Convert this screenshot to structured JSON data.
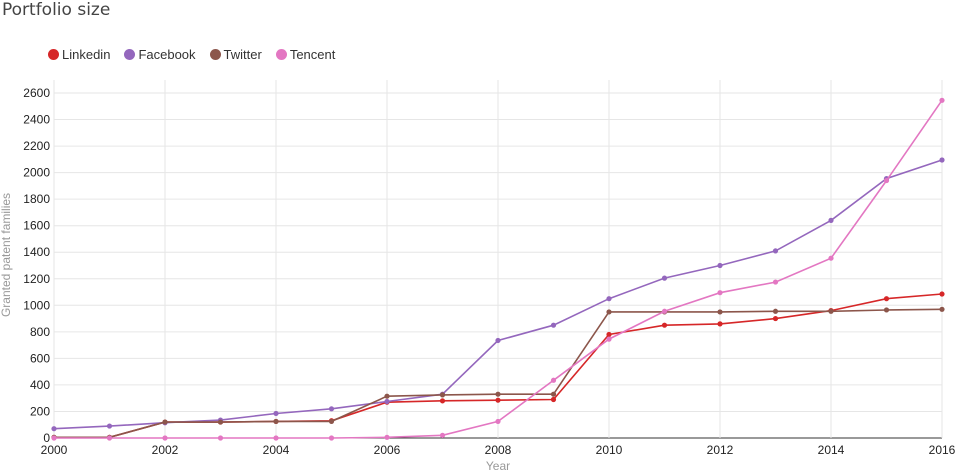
{
  "chart_data": {
    "type": "line",
    "title": "Portfolio size",
    "xlabel": "Year",
    "ylabel": "Granted patent families",
    "xlim": [
      2000,
      2016
    ],
    "ylim": [
      0,
      2700
    ],
    "x_ticks": [
      2000,
      2002,
      2004,
      2006,
      2008,
      2010,
      2012,
      2014,
      2016
    ],
    "y_ticks": [
      0,
      200,
      400,
      600,
      800,
      1000,
      1200,
      1400,
      1600,
      1800,
      2000,
      2200,
      2400,
      2600
    ],
    "grid": true,
    "legend_position": "top-left",
    "x": [
      2000,
      2001,
      2002,
      2003,
      2004,
      2005,
      2006,
      2007,
      2008,
      2009,
      2010,
      2011,
      2012,
      2013,
      2014,
      2015,
      2016
    ],
    "series": [
      {
        "name": "Linkedin",
        "color": "#d62728",
        "values": [
          5,
          5,
          120,
          120,
          125,
          130,
          270,
          280,
          285,
          290,
          780,
          850,
          860,
          900,
          960,
          1050,
          1085
        ]
      },
      {
        "name": "Facebook",
        "color": "#9467bd",
        "values": [
          70,
          90,
          115,
          135,
          185,
          220,
          275,
          330,
          735,
          850,
          1050,
          1205,
          1300,
          1410,
          1640,
          1955,
          2095
        ]
      },
      {
        "name": "Twitter",
        "color": "#8c564b",
        "values": [
          5,
          5,
          120,
          120,
          125,
          125,
          315,
          325,
          330,
          330,
          950,
          950,
          950,
          955,
          955,
          965,
          970
        ]
      },
      {
        "name": "Tencent",
        "color": "#e377c2",
        "values": [
          0,
          0,
          0,
          0,
          0,
          0,
          5,
          20,
          125,
          435,
          745,
          955,
          1095,
          1175,
          1355,
          1940,
          2545
        ]
      }
    ]
  }
}
